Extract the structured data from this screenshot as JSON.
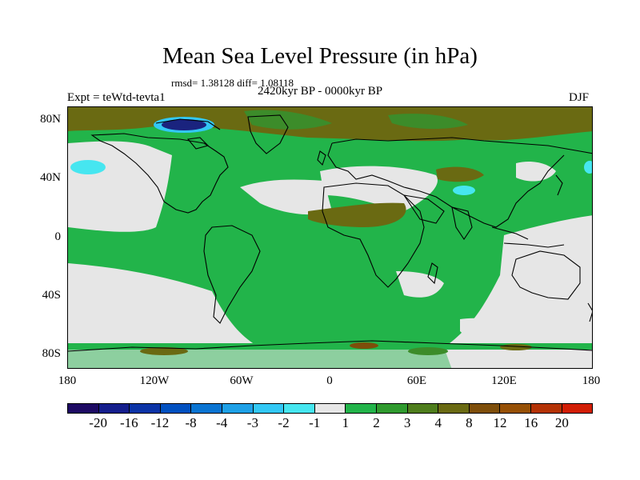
{
  "title": "Mean Sea Level Pressure (in hPa)",
  "stats": "rmsd= 1.38128 diff= 1.08118",
  "period": "2420kyr BP - 0000kyr BP",
  "experiment": "Expt = teWtd-tevta1",
  "season": "DJF",
  "lat_labels": [
    "80N",
    "40N",
    "0",
    "40S",
    "80S"
  ],
  "lon_labels": [
    "180",
    "120W",
    "60W",
    "0",
    "60E",
    "120E",
    "180"
  ],
  "colorbar": {
    "colors": [
      "#1d0a63",
      "#141e8c",
      "#0b33a6",
      "#0050c0",
      "#0a74d2",
      "#1ea0e6",
      "#32c8f5",
      "#46e6f0",
      "#e6e6e6",
      "#22b44a",
      "#2f9a2e",
      "#4e7d1c",
      "#6a6a12",
      "#7e4e0a",
      "#965005",
      "#b43205",
      "#d21e05"
    ],
    "labels": [
      "-20",
      "-16",
      "-12",
      "-8",
      "-4",
      "-3",
      "-2",
      "-1",
      "1",
      "2",
      "3",
      "4",
      "8",
      "12",
      "16",
      "20"
    ]
  },
  "colors": {
    "neutral": "#e6e6e6",
    "green": "#22b44a",
    "olive": "#3c8c2a",
    "brown": "#7a5a12",
    "navy": "#1a237e",
    "cyan": "#32c8f5"
  }
}
